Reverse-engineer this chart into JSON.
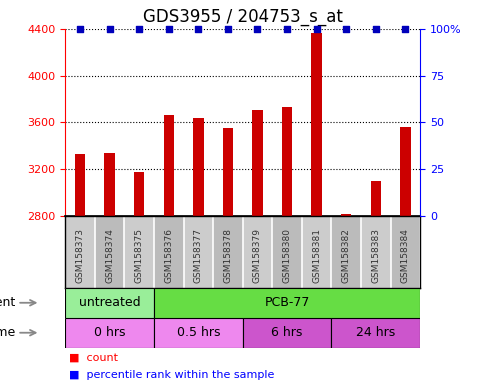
{
  "title": "GDS3955 / 204753_s_at",
  "samples": [
    "GSM158373",
    "GSM158374",
    "GSM158375",
    "GSM158376",
    "GSM158377",
    "GSM158378",
    "GSM158379",
    "GSM158380",
    "GSM158381",
    "GSM158382",
    "GSM158383",
    "GSM158384"
  ],
  "counts": [
    3330,
    3340,
    3180,
    3660,
    3640,
    3550,
    3710,
    3730,
    4360,
    2820,
    3100,
    3560
  ],
  "bar_color": "#cc0000",
  "dot_color": "#0000bb",
  "ylim_left": [
    2800,
    4400
  ],
  "yticks_left": [
    2800,
    3200,
    3600,
    4000,
    4400
  ],
  "ylim_right": [
    0,
    100
  ],
  "yticks_right": [
    0,
    25,
    50,
    75,
    100
  ],
  "ytick_right_labels": [
    "0",
    "25",
    "50",
    "75",
    "100%"
  ],
  "background_color": "#ffffff",
  "agent_segments": [
    {
      "label": "untreated",
      "start": 0,
      "end": 3,
      "color": "#99ee99"
    },
    {
      "label": "PCB-77",
      "start": 3,
      "end": 12,
      "color": "#66dd44"
    }
  ],
  "time_segments": [
    {
      "label": "0 hrs",
      "start": 0,
      "end": 3,
      "color": "#ee88ee"
    },
    {
      "label": "0.5 hrs",
      "start": 3,
      "end": 6,
      "color": "#ee88ee"
    },
    {
      "label": "6 hrs",
      "start": 6,
      "end": 9,
      "color": "#cc55cc"
    },
    {
      "label": "24 hrs",
      "start": 9,
      "end": 12,
      "color": "#cc55cc"
    }
  ],
  "n_bars": 12,
  "bar_width": 0.35,
  "title_fontsize": 12,
  "tick_fontsize": 8,
  "sample_fontsize": 6.5,
  "annot_fontsize": 9,
  "legend_fontsize": 8
}
